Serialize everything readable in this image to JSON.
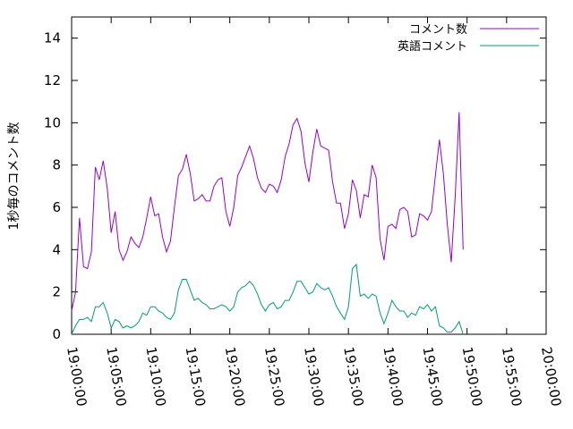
{
  "chart_data": {
    "type": "line",
    "title": "",
    "xlabel": "",
    "ylabel": "1秒毎のコメント数",
    "xlim": [
      "19:00:00",
      "20:00:00"
    ],
    "ylim": [
      0,
      15
    ],
    "x_ticks": [
      "19:00:00",
      "19:05:00",
      "19:10:00",
      "19:15:00",
      "19:20:00",
      "19:25:00",
      "19:30:00",
      "19:35:00",
      "19:40:00",
      "19:45:00",
      "19:50:00",
      "19:55:00",
      "20:00:00"
    ],
    "y_ticks": [
      0,
      2,
      4,
      6,
      8,
      10,
      12,
      14
    ],
    "grid": false,
    "legend_position": "top-right",
    "series": [
      {
        "name": "コメント数",
        "color": "#9400d3",
        "points": [
          [
            "19:00:00",
            1.1
          ],
          [
            "19:00:30",
            2.0
          ],
          [
            "19:01:00",
            5.5
          ],
          [
            "19:01:30",
            3.2
          ],
          [
            "19:02:00",
            3.1
          ],
          [
            "19:02:30",
            3.9
          ],
          [
            "19:03:00",
            7.9
          ],
          [
            "19:03:30",
            7.3
          ],
          [
            "19:04:00",
            8.2
          ],
          [
            "19:04:30",
            6.9
          ],
          [
            "19:05:00",
            4.8
          ],
          [
            "19:05:30",
            5.8
          ],
          [
            "19:06:00",
            4.0
          ],
          [
            "19:06:30",
            3.5
          ],
          [
            "19:07:00",
            3.9
          ],
          [
            "19:07:30",
            4.6
          ],
          [
            "19:08:00",
            4.3
          ],
          [
            "19:08:30",
            4.1
          ],
          [
            "19:09:00",
            4.6
          ],
          [
            "19:09:30",
            5.5
          ],
          [
            "19:10:00",
            6.5
          ],
          [
            "19:10:30",
            5.6
          ],
          [
            "19:11:00",
            5.7
          ],
          [
            "19:11:30",
            4.6
          ],
          [
            "19:12:00",
            3.9
          ],
          [
            "19:12:30",
            4.4
          ],
          [
            "19:13:00",
            6.0
          ],
          [
            "19:13:30",
            7.5
          ],
          [
            "19:14:00",
            7.8
          ],
          [
            "19:14:30",
            8.5
          ],
          [
            "19:15:00",
            7.6
          ],
          [
            "19:15:30",
            6.3
          ],
          [
            "19:16:00",
            6.4
          ],
          [
            "19:16:30",
            6.6
          ],
          [
            "19:17:00",
            6.3
          ],
          [
            "19:17:30",
            6.3
          ],
          [
            "19:18:00",
            7.0
          ],
          [
            "19:18:30",
            7.3
          ],
          [
            "19:19:00",
            7.4
          ],
          [
            "19:19:30",
            5.8
          ],
          [
            "19:20:00",
            5.1
          ],
          [
            "19:20:30",
            6.0
          ],
          [
            "19:21:00",
            7.5
          ],
          [
            "19:21:30",
            7.9
          ],
          [
            "19:22:00",
            8.4
          ],
          [
            "19:22:30",
            8.9
          ],
          [
            "19:23:00",
            8.3
          ],
          [
            "19:23:30",
            7.4
          ],
          [
            "19:24:00",
            6.9
          ],
          [
            "19:24:30",
            6.7
          ],
          [
            "19:25:00",
            7.1
          ],
          [
            "19:25:30",
            7.0
          ],
          [
            "19:26:00",
            6.7
          ],
          [
            "19:26:30",
            7.3
          ],
          [
            "19:27:00",
            8.4
          ],
          [
            "19:27:30",
            9.0
          ],
          [
            "19:28:00",
            9.9
          ],
          [
            "19:28:30",
            10.2
          ],
          [
            "19:29:00",
            9.6
          ],
          [
            "19:29:30",
            8.1
          ],
          [
            "19:30:00",
            7.2
          ],
          [
            "19:30:30",
            8.6
          ],
          [
            "19:31:00",
            9.7
          ],
          [
            "19:31:30",
            8.9
          ],
          [
            "19:32:00",
            8.8
          ],
          [
            "19:32:30",
            8.7
          ],
          [
            "19:33:00",
            7.2
          ],
          [
            "19:33:30",
            6.2
          ],
          [
            "19:34:00",
            6.2
          ],
          [
            "19:34:30",
            5.0
          ],
          [
            "19:35:00",
            5.7
          ],
          [
            "19:35:30",
            7.3
          ],
          [
            "19:36:00",
            6.8
          ],
          [
            "19:36:30",
            5.5
          ],
          [
            "19:37:00",
            6.6
          ],
          [
            "19:37:30",
            6.5
          ],
          [
            "19:38:00",
            8.0
          ],
          [
            "19:38:30",
            7.4
          ],
          [
            "19:39:00",
            4.5
          ],
          [
            "19:39:30",
            3.5
          ],
          [
            "19:40:00",
            5.1
          ],
          [
            "19:40:30",
            5.2
          ],
          [
            "19:41:00",
            5.0
          ],
          [
            "19:41:30",
            5.9
          ],
          [
            "19:42:00",
            6.0
          ],
          [
            "19:42:30",
            5.8
          ],
          [
            "19:43:00",
            4.6
          ],
          [
            "19:43:30",
            4.7
          ],
          [
            "19:44:00",
            5.7
          ],
          [
            "19:44:30",
            5.6
          ],
          [
            "19:45:00",
            5.4
          ],
          [
            "19:45:30",
            5.8
          ],
          [
            "19:46:00",
            7.5
          ],
          [
            "19:46:30",
            9.2
          ],
          [
            "19:47:00",
            7.6
          ],
          [
            "19:47:30",
            5.2
          ],
          [
            "19:48:00",
            3.4
          ],
          [
            "19:48:30",
            6.5
          ],
          [
            "19:49:00",
            10.5
          ],
          [
            "19:49:30",
            4.0
          ]
        ]
      },
      {
        "name": "英語コメント",
        "color": "#009e73",
        "points": [
          [
            "19:00:00",
            0.0
          ],
          [
            "19:00:30",
            0.4
          ],
          [
            "19:01:00",
            0.7
          ],
          [
            "19:01:30",
            0.7
          ],
          [
            "19:02:00",
            0.8
          ],
          [
            "19:02:30",
            0.6
          ],
          [
            "19:03:00",
            1.3
          ],
          [
            "19:03:30",
            1.3
          ],
          [
            "19:04:00",
            1.5
          ],
          [
            "19:04:30",
            1.0
          ],
          [
            "19:05:00",
            0.3
          ],
          [
            "19:05:30",
            0.7
          ],
          [
            "19:06:00",
            0.6
          ],
          [
            "19:06:30",
            0.3
          ],
          [
            "19:07:00",
            0.4
          ],
          [
            "19:07:30",
            0.3
          ],
          [
            "19:08:00",
            0.4
          ],
          [
            "19:08:30",
            0.6
          ],
          [
            "19:09:00",
            1.0
          ],
          [
            "19:09:30",
            0.9
          ],
          [
            "19:10:00",
            1.3
          ],
          [
            "19:10:30",
            1.3
          ],
          [
            "19:11:00",
            1.1
          ],
          [
            "19:11:30",
            1.0
          ],
          [
            "19:12:00",
            0.8
          ],
          [
            "19:12:30",
            0.7
          ],
          [
            "19:13:00",
            1.0
          ],
          [
            "19:13:30",
            2.1
          ],
          [
            "19:14:00",
            2.6
          ],
          [
            "19:14:30",
            2.6
          ],
          [
            "19:15:00",
            2.1
          ],
          [
            "19:15:30",
            1.6
          ],
          [
            "19:16:00",
            1.7
          ],
          [
            "19:16:30",
            1.5
          ],
          [
            "19:17:00",
            1.4
          ],
          [
            "19:17:30",
            1.2
          ],
          [
            "19:18:00",
            1.2
          ],
          [
            "19:18:30",
            1.3
          ],
          [
            "19:19:00",
            1.4
          ],
          [
            "19:19:30",
            1.3
          ],
          [
            "19:20:00",
            1.1
          ],
          [
            "19:20:30",
            1.3
          ],
          [
            "19:21:00",
            2.0
          ],
          [
            "19:21:30",
            2.2
          ],
          [
            "19:22:00",
            2.3
          ],
          [
            "19:22:30",
            2.5
          ],
          [
            "19:23:00",
            2.3
          ],
          [
            "19:23:30",
            1.9
          ],
          [
            "19:24:00",
            1.4
          ],
          [
            "19:24:30",
            1.1
          ],
          [
            "19:25:00",
            1.4
          ],
          [
            "19:25:30",
            1.5
          ],
          [
            "19:26:00",
            1.2
          ],
          [
            "19:26:30",
            1.3
          ],
          [
            "19:27:00",
            1.6
          ],
          [
            "19:27:30",
            1.6
          ],
          [
            "19:28:00",
            2.0
          ],
          [
            "19:28:30",
            2.5
          ],
          [
            "19:29:00",
            2.5
          ],
          [
            "19:29:30",
            2.2
          ],
          [
            "19:30:00",
            1.9
          ],
          [
            "19:30:30",
            2.0
          ],
          [
            "19:31:00",
            2.4
          ],
          [
            "19:31:30",
            2.2
          ],
          [
            "19:32:00",
            2.1
          ],
          [
            "19:32:30",
            2.2
          ],
          [
            "19:33:00",
            1.8
          ],
          [
            "19:33:30",
            1.3
          ],
          [
            "19:34:00",
            1.0
          ],
          [
            "19:34:30",
            0.7
          ],
          [
            "19:35:00",
            1.3
          ],
          [
            "19:35:30",
            3.1
          ],
          [
            "19:36:00",
            3.3
          ],
          [
            "19:36:30",
            1.8
          ],
          [
            "19:37:00",
            1.9
          ],
          [
            "19:37:30",
            1.7
          ],
          [
            "19:38:00",
            1.9
          ],
          [
            "19:38:30",
            1.8
          ],
          [
            "19:39:00",
            1.0
          ],
          [
            "19:39:30",
            0.5
          ],
          [
            "19:40:00",
            1.0
          ],
          [
            "19:40:30",
            1.6
          ],
          [
            "19:41:00",
            1.3
          ],
          [
            "19:41:30",
            1.1
          ],
          [
            "19:42:00",
            1.1
          ],
          [
            "19:42:30",
            0.8
          ],
          [
            "19:43:00",
            1.0
          ],
          [
            "19:43:30",
            0.9
          ],
          [
            "19:44:00",
            1.3
          ],
          [
            "19:44:30",
            1.2
          ],
          [
            "19:45:00",
            1.4
          ],
          [
            "19:45:30",
            1.1
          ],
          [
            "19:46:00",
            1.3
          ],
          [
            "19:46:30",
            0.4
          ],
          [
            "19:47:00",
            0.3
          ],
          [
            "19:47:30",
            0.1
          ],
          [
            "19:48:00",
            0.1
          ],
          [
            "19:48:30",
            0.3
          ],
          [
            "19:49:00",
            0.6
          ],
          [
            "19:49:30",
            0.0
          ]
        ]
      }
    ]
  }
}
